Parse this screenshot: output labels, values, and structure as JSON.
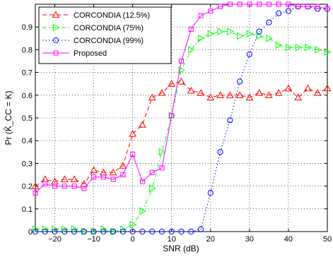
{
  "chart_data": {
    "type": "line",
    "xlabel": "SNR (dB)",
    "ylabel": "Pr (K̂_CC = K)",
    "xlim": [
      -25,
      50
    ],
    "ylim": [
      0,
      1
    ],
    "xticks": [
      -20,
      -10,
      0,
      10,
      20,
      30,
      40,
      50
    ],
    "yticks": [
      0,
      0.1,
      0.2,
      0.3,
      0.4,
      0.5,
      0.6,
      0.7,
      0.8,
      0.9
    ],
    "grid": true,
    "legend_position": "top-left",
    "x": [
      -25,
      -22.5,
      -20,
      -17.5,
      -15,
      -12.5,
      -10,
      -7.5,
      -5,
      -2.5,
      0,
      2.5,
      5,
      7.5,
      10,
      12.5,
      15,
      17.5,
      20,
      22.5,
      25,
      27.5,
      30,
      32.5,
      35,
      37.5,
      40,
      42.5,
      45,
      47.5,
      50
    ],
    "series": [
      {
        "name": "CORCONDIA (12.5%)",
        "color": "#ff0000",
        "dash": "dashed",
        "marker": "triangle-up",
        "values": [
          0.2,
          0.23,
          0.22,
          0.23,
          0.23,
          0.21,
          0.27,
          0.26,
          0.26,
          0.29,
          0.43,
          0.47,
          0.59,
          0.61,
          0.65,
          0.66,
          0.62,
          0.61,
          0.59,
          0.6,
          0.6,
          0.6,
          0.59,
          0.61,
          0.6,
          0.61,
          0.63,
          0.59,
          0.63,
          0.61,
          0.63
        ]
      },
      {
        "name": "CORCONDIA (75%)",
        "color": "#00ff00",
        "dash": "dashdot",
        "marker": "triangle-right",
        "values": [
          0.01,
          0.01,
          0.01,
          0.01,
          0.01,
          0.0,
          0.0,
          0.01,
          0.0,
          0.01,
          0.03,
          0.09,
          0.19,
          0.35,
          0.51,
          0.71,
          0.8,
          0.85,
          0.87,
          0.88,
          0.88,
          0.86,
          0.87,
          0.86,
          0.85,
          0.82,
          0.81,
          0.81,
          0.81,
          0.8,
          0.79
        ]
      },
      {
        "name": "CORCONDIA (99%)",
        "color": "#0000ff",
        "dash": "dotted",
        "marker": "circle",
        "values": [
          0,
          0,
          0,
          0,
          0,
          0,
          0,
          0,
          0,
          0,
          0,
          0,
          0,
          0,
          0,
          0,
          0,
          0.01,
          0.17,
          0.35,
          0.49,
          0.66,
          0.78,
          0.88,
          0.92,
          0.96,
          0.97,
          0.99,
          0.99,
          0.98,
          0.98
        ]
      },
      {
        "name": "Proposed",
        "color": "#ff00ff",
        "dash": "solid",
        "marker": "square",
        "values": [
          0.17,
          0.21,
          0.2,
          0.2,
          0.2,
          0.19,
          0.24,
          0.24,
          0.23,
          0.25,
          0.34,
          0.22,
          0.26,
          0.28,
          0.51,
          0.75,
          0.89,
          0.95,
          0.97,
          0.99,
          1.0,
          1.0,
          1.0,
          1.0,
          1.0,
          1.0,
          1.0,
          0.99,
          0.99,
          0.99,
          0.98
        ]
      }
    ]
  }
}
